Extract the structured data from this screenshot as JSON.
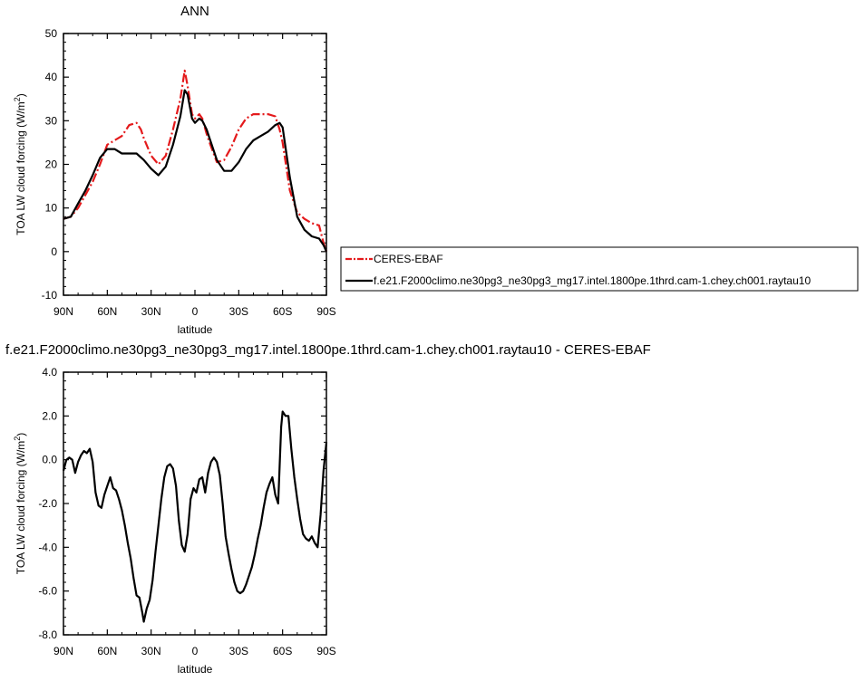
{
  "chart_data": [
    {
      "type": "line",
      "title": "ANN",
      "xlabel": "latitude",
      "ylabel": "TOA LW cloud forcing (W/m²)",
      "ylabel_base": "TOA LW cloud forcing (W/m",
      "ylabel_sup": "2",
      "ylabel_close": ")",
      "x_ticks": [
        "90N",
        "60N",
        "30N",
        "0",
        "30S",
        "60S",
        "90S"
      ],
      "y_ticks": [
        "50",
        "40",
        "30",
        "20",
        "10",
        "0",
        "-10"
      ],
      "xlim": [
        90,
        -90
      ],
      "ylim": [
        -10,
        50
      ],
      "grid": false,
      "legend_position": "outside-right",
      "series": [
        {
          "name": "CERES-EBAF",
          "color": "#e41a1c",
          "dash": "dashed",
          "x": [
            90,
            85,
            80,
            75,
            70,
            65,
            60,
            55,
            50,
            45,
            40,
            37,
            35,
            30,
            25,
            20,
            15,
            10,
            7,
            5,
            2,
            0,
            -3,
            -5,
            -8,
            -10,
            -15,
            -20,
            -25,
            -30,
            -35,
            -40,
            -45,
            -50,
            -55,
            -58,
            -60,
            -65,
            -70,
            -75,
            -80,
            -85,
            -88,
            -90
          ],
          "y": [
            7.5,
            8,
            10,
            13,
            16,
            20,
            24.5,
            25.5,
            26.5,
            29,
            29.5,
            28,
            26,
            22,
            20,
            22,
            28,
            35,
            41.5,
            38,
            31.5,
            30.5,
            31.5,
            30.5,
            27,
            25,
            20.5,
            21,
            24,
            28,
            30.5,
            31.5,
            31.5,
            31.5,
            31,
            28,
            25,
            14,
            9,
            7.5,
            6.5,
            6,
            2,
            0
          ]
        },
        {
          "name": "f.e21.F2000climo.ne30pg3_ne30pg3_mg17.intel.1800pe.1thrd.cam-1.chey.ch001.raytau10",
          "color": "#000000",
          "dash": "solid",
          "x": [
            90,
            85,
            80,
            75,
            70,
            65,
            60,
            55,
            50,
            45,
            40,
            35,
            30,
            25,
            20,
            15,
            10,
            7,
            5,
            2,
            0,
            -3,
            -5,
            -8,
            -10,
            -15,
            -20,
            -25,
            -30,
            -35,
            -40,
            -45,
            -50,
            -55,
            -58,
            -60,
            -65,
            -70,
            -75,
            -80,
            -85,
            -88,
            -90
          ],
          "y": [
            7.5,
            8,
            11,
            14,
            17.5,
            21.5,
            23.5,
            23.5,
            22.5,
            22.5,
            22.5,
            21,
            19,
            17.5,
            19.5,
            24.5,
            31,
            37,
            36,
            30.5,
            29.5,
            30.5,
            30,
            28,
            26,
            21,
            18.5,
            18.5,
            20.5,
            23.5,
            25.5,
            26.5,
            27.5,
            29,
            29.5,
            28.5,
            17,
            8,
            5,
            3.5,
            3,
            1.5,
            0
          ]
        }
      ]
    },
    {
      "type": "line",
      "title": "f.e21.F2000climo.ne30pg3_ne30pg3_mg17.intel.1800pe.1thrd.cam-1.chey.ch001.raytau10 - CERES-EBAF",
      "xlabel": "latitude",
      "ylabel": "TOA LW cloud forcing (W/m²)",
      "ylabel_base": "TOA LW cloud forcing (W/m",
      "ylabel_sup": "2",
      "ylabel_close": ")",
      "x_ticks": [
        "90N",
        "60N",
        "30N",
        "0",
        "30S",
        "60S",
        "90S"
      ],
      "y_ticks": [
        "4.0",
        "2.0",
        "0.0",
        "-2.0",
        "-4.0",
        "-6.0",
        "-8.0"
      ],
      "xlim": [
        90,
        -90
      ],
      "ylim": [
        -8,
        4
      ],
      "grid": false,
      "series": [
        {
          "color": "#000000",
          "dash": "solid",
          "x": [
            90,
            88,
            86,
            84,
            82,
            80,
            78,
            76,
            74,
            72,
            70,
            68,
            66,
            64,
            62,
            60,
            58,
            56,
            54,
            52,
            50,
            48,
            46,
            44,
            42,
            40,
            38,
            36,
            35,
            33,
            31,
            29,
            27,
            25,
            23,
            21,
            19,
            17,
            15,
            13,
            11,
            9,
            7,
            5,
            3,
            1,
            -1,
            -3,
            -5,
            -7,
            -9,
            -11,
            -13,
            -15,
            -17,
            -19,
            -21,
            -23,
            -25,
            -27,
            -29,
            -31,
            -33,
            -35,
            -37,
            -39,
            -41,
            -43,
            -45,
            -47,
            -49,
            -51,
            -53,
            -55,
            -57,
            -59,
            -60,
            -62,
            -64,
            -66,
            -68,
            -70,
            -72,
            -74,
            -76,
            -78,
            -80,
            -82,
            -84,
            -86,
            -88,
            -90
          ],
          "y": [
            -0.5,
            0.0,
            0.1,
            0.0,
            -0.6,
            -0.1,
            0.2,
            0.4,
            0.3,
            0.5,
            -0.1,
            -1.5,
            -2.1,
            -2.2,
            -1.6,
            -1.2,
            -0.8,
            -1.3,
            -1.4,
            -1.8,
            -2.3,
            -3.0,
            -3.8,
            -4.5,
            -5.4,
            -6.2,
            -6.3,
            -7.0,
            -7.4,
            -6.8,
            -6.4,
            -5.5,
            -4.2,
            -3.0,
            -1.8,
            -0.8,
            -0.3,
            -0.2,
            -0.4,
            -1.2,
            -2.8,
            -3.9,
            -4.2,
            -3.4,
            -1.8,
            -1.3,
            -1.5,
            -0.9,
            -0.8,
            -1.5,
            -0.6,
            -0.1,
            0.1,
            -0.1,
            -0.7,
            -2.0,
            -3.5,
            -4.3,
            -5.0,
            -5.6,
            -6.0,
            -6.1,
            -6.0,
            -5.7,
            -5.3,
            -4.9,
            -4.3,
            -3.6,
            -3.0,
            -2.2,
            -1.5,
            -1.1,
            -0.8,
            -1.6,
            -2.0,
            1.5,
            2.2,
            2.0,
            2.0,
            0.5,
            -0.8,
            -1.8,
            -2.7,
            -3.4,
            -3.6,
            -3.7,
            -3.5,
            -3.8,
            -4.0,
            -2.5,
            -0.5,
            0.8
          ]
        }
      ]
    }
  ]
}
